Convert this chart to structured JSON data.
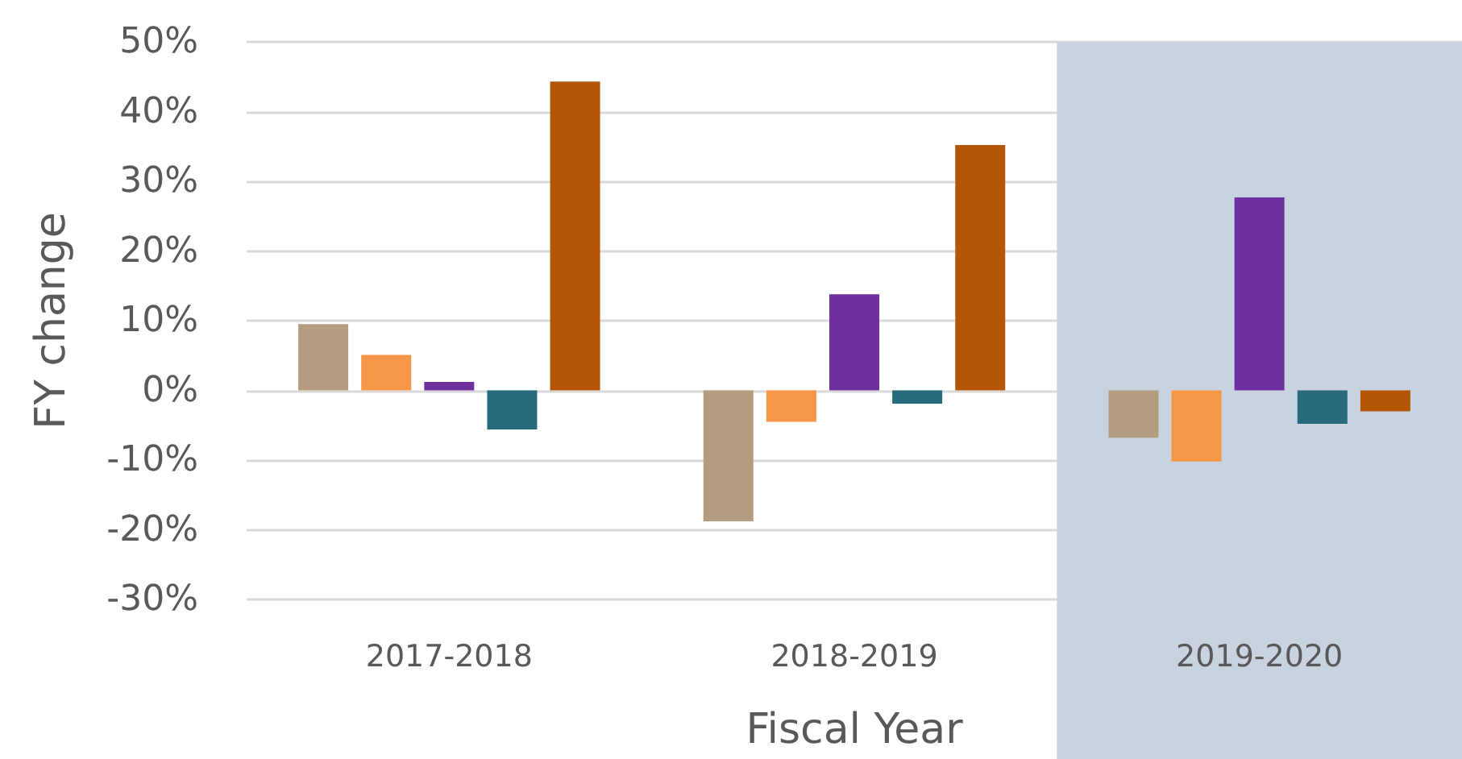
{
  "chart_data": {
    "type": "bar",
    "xlabel": "Fiscal Year",
    "ylabel": "FY change",
    "categories": [
      "2017-2018",
      "2018-2019",
      "2019-2020"
    ],
    "series": [
      {
        "color": "#b49d7f",
        "values": [
          9.5,
          -18.8,
          -6.8
        ]
      },
      {
        "color": "#f79646",
        "values": [
          5.1,
          -4.5,
          -10.2
        ]
      },
      {
        "color": "#7030a0",
        "values": [
          1.2,
          13.8,
          27.7
        ]
      },
      {
        "color": "#276a7c",
        "values": [
          -5.6,
          -1.9,
          -4.8
        ]
      },
      {
        "color": "#b55606",
        "values": [
          44.3,
          35.2,
          -3.0
        ]
      }
    ],
    "ylim": [
      -30,
      50
    ],
    "yticks": [
      {
        "value": -30,
        "label": "-30%"
      },
      {
        "value": -20,
        "label": "-20%"
      },
      {
        "value": -10,
        "label": "-10%"
      },
      {
        "value": 0,
        "label": "0%"
      },
      {
        "value": 10,
        "label": "10%"
      },
      {
        "value": 20,
        "label": "20%"
      },
      {
        "value": 30,
        "label": "30%"
      },
      {
        "value": 40,
        "label": "40%"
      },
      {
        "value": 50,
        "label": "50%"
      }
    ],
    "bands": [
      {
        "axis": "x",
        "from": "2019-2020",
        "to": "2019-2020",
        "color": "#c8d3df"
      }
    ],
    "grid": "y"
  }
}
